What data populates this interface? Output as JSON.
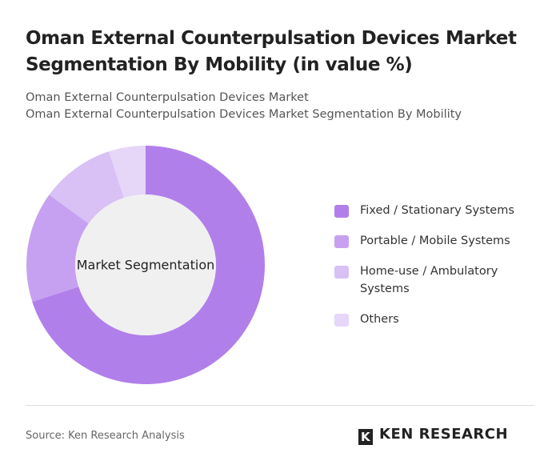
{
  "chart_data": {
    "type": "donut",
    "title": "Oman External Counterpulsation Devices Market Segmentation By Mobility (in value %)",
    "subtitle": [
      "Oman External Counterpulsation Devices Market",
      "Oman External Counterpulsation Devices Market Segmentation By Mobility"
    ],
    "center_label": "Market Segmentation",
    "categories": [
      "Fixed / Stationary Systems",
      "Portable / Mobile Systems",
      "Home-use / Ambulatory Systems",
      "Others"
    ],
    "values": [
      70,
      15,
      10,
      5
    ],
    "colors": [
      "#b17fea",
      "#c7a1f1",
      "#d9c0f5",
      "#e6d6f8"
    ],
    "source": "Source: Ken Research Analysis",
    "logo": "KEN RESEARCH"
  }
}
